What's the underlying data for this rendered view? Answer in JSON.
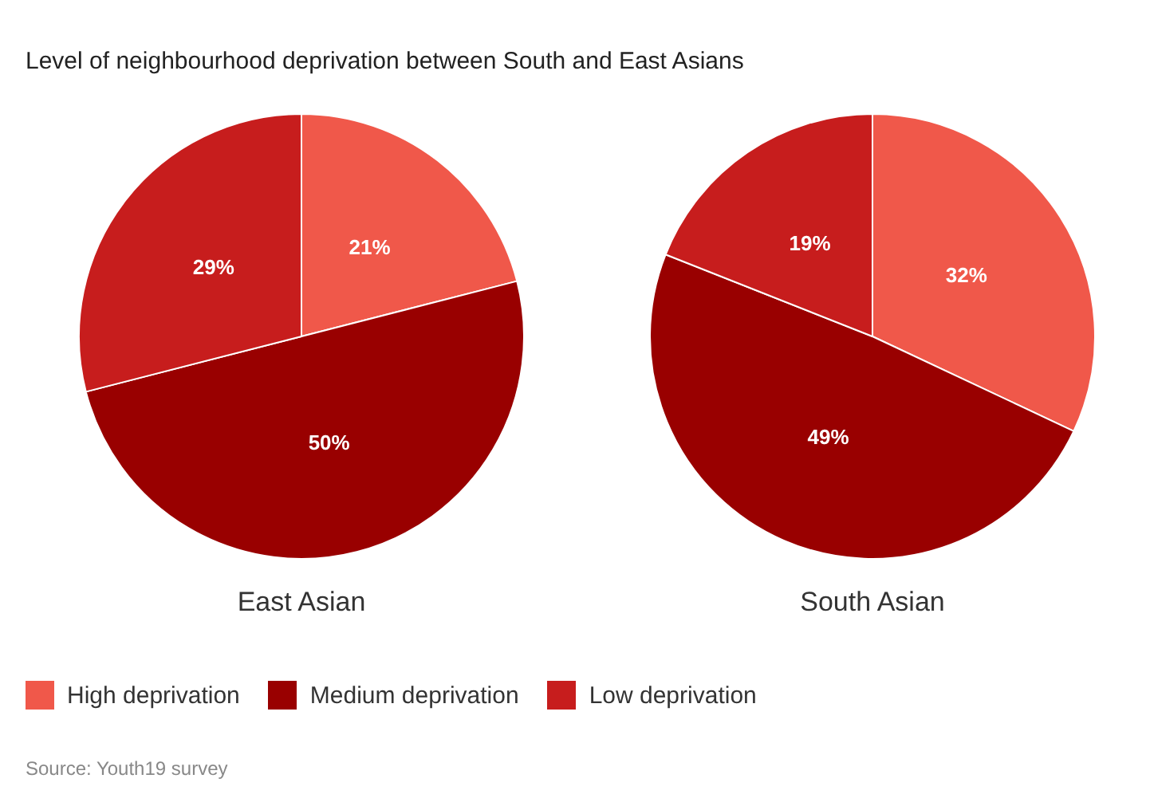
{
  "chart_data": {
    "type": "pie",
    "title": "Level of neighbourhood deprivation between South and East Asians",
    "categories": [
      "High deprivation",
      "Medium deprivation",
      "Low deprivation"
    ],
    "colors": [
      "#f0584a",
      "#990000",
      "#c71d1d"
    ],
    "legend": "bottom",
    "annotations": [
      "Source: Youth19 survey"
    ],
    "series": [
      {
        "name": "East Asian",
        "values": [
          21,
          50,
          29
        ],
        "value_labels": [
          "21%",
          "50%",
          "29%"
        ]
      },
      {
        "name": "South Asian",
        "values": [
          32,
          49,
          19
        ],
        "value_labels": [
          "32%",
          "49%",
          "19%"
        ]
      }
    ]
  }
}
